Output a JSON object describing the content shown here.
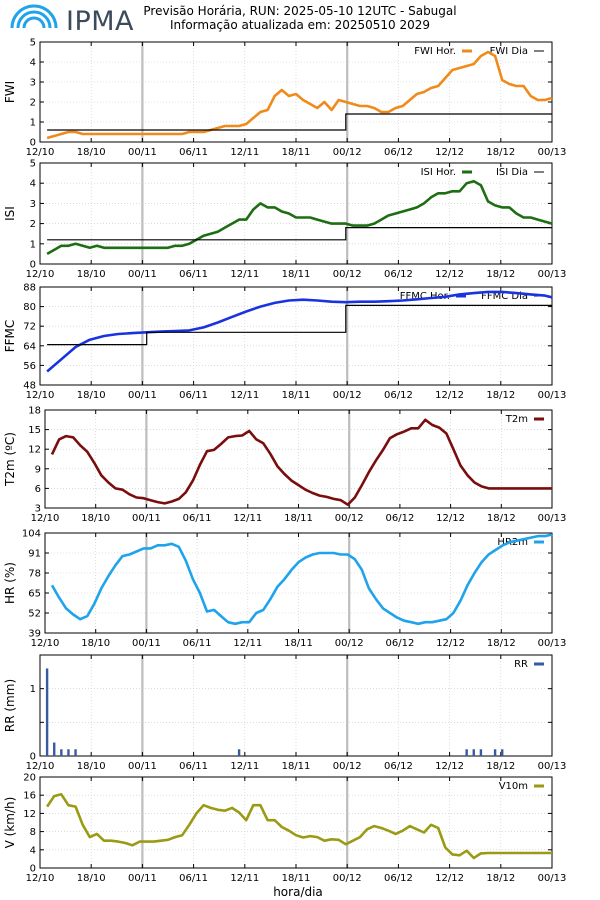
{
  "header": {
    "logo_text": "IPMA",
    "title_line1": "Previsão Horária, RUN: 2025-05-10 12UTC - Sabugal",
    "title_line2": "Informação atualizada em: 20250510 2029"
  },
  "x_axis": {
    "label": "hora/dia",
    "range_hours": [
      0,
      72
    ],
    "tick_labels": [
      "12/10",
      "18/10",
      "00/11",
      "06/11",
      "12/11",
      "18/11",
      "00/12",
      "06/12",
      "12/12",
      "18/12",
      "00/13"
    ],
    "day_separators": [
      "00/11",
      "00/12"
    ]
  },
  "colors": {
    "fwi": "#f08a1a",
    "isi": "#1d6e12",
    "ffmc": "#1a33e0",
    "t2m": "#7a0d0d",
    "hr": "#1ea3ec",
    "rr": "#3a5aa0",
    "v10": "#9b9a14",
    "daily": "#000000"
  },
  "chart_data": [
    {
      "id": "fwi",
      "type": "line",
      "ylabel": "FWI",
      "ylim": [
        0,
        5
      ],
      "yticks": [
        "0",
        "1",
        "2",
        "3",
        "4",
        "5"
      ],
      "series": [
        {
          "name": "FWI Hor.",
          "x": [
            1,
            2,
            3,
            4,
            5,
            6,
            7,
            8,
            9,
            10,
            11,
            12,
            13,
            14,
            15,
            16,
            17,
            18,
            19,
            20,
            21,
            22,
            23,
            24,
            25,
            26,
            27,
            28,
            29,
            30,
            31,
            32,
            33,
            34,
            35,
            36,
            37,
            38,
            39,
            40,
            41,
            42,
            43,
            44,
            45,
            46,
            47,
            48,
            49,
            50,
            51,
            52,
            53,
            54,
            55,
            56,
            57,
            58,
            59,
            60,
            61,
            62,
            63,
            64,
            65,
            66,
            67,
            68,
            69,
            70,
            71,
            72
          ],
          "values": [
            0.2,
            0.3,
            0.4,
            0.5,
            0.5,
            0.4,
            0.4,
            0.4,
            0.4,
            0.4,
            0.4,
            0.4,
            0.4,
            0.4,
            0.4,
            0.4,
            0.4,
            0.4,
            0.4,
            0.4,
            0.5,
            0.5,
            0.5,
            0.6,
            0.7,
            0.8,
            0.8,
            0.8,
            0.9,
            1.2,
            1.5,
            1.6,
            2.3,
            2.6,
            2.3,
            2.4,
            2.1,
            1.9,
            1.7,
            2.0,
            1.6,
            2.1,
            2.0,
            1.9,
            1.8,
            1.8,
            1.7,
            1.5,
            1.5,
            1.7,
            1.8,
            2.1,
            2.4,
            2.5,
            2.7,
            2.8,
            3.2,
            3.6,
            3.7,
            3.8,
            3.9,
            4.3,
            4.5,
            4.3,
            3.1,
            2.9,
            2.8,
            2.8,
            2.3,
            2.1,
            2.1,
            2.2
          ]
        },
        {
          "name": "FWI Dia",
          "daily": true,
          "steps": [
            [
              1,
              0.6
            ],
            [
              43,
              0.6
            ],
            [
              43,
              1.4
            ],
            [
              72,
              1.4
            ]
          ]
        }
      ]
    },
    {
      "id": "isi",
      "type": "line",
      "ylabel": "ISI",
      "ylim": [
        0,
        5
      ],
      "yticks": [
        "0",
        "1",
        "2",
        "3",
        "4",
        "5"
      ],
      "series": [
        {
          "name": "ISI Hor.",
          "x": [
            1,
            2,
            3,
            4,
            5,
            6,
            7,
            8,
            9,
            10,
            11,
            12,
            13,
            14,
            15,
            16,
            17,
            18,
            19,
            20,
            21,
            22,
            23,
            24,
            25,
            26,
            27,
            28,
            29,
            30,
            31,
            32,
            33,
            34,
            35,
            36,
            37,
            38,
            39,
            40,
            41,
            42,
            43,
            44,
            45,
            46,
            47,
            48,
            49,
            50,
            51,
            52,
            53,
            54,
            55,
            56,
            57,
            58,
            59,
            60,
            61,
            62,
            63,
            64,
            65,
            66,
            67,
            68,
            69,
            70,
            71,
            72
          ],
          "values": [
            0.5,
            0.7,
            0.9,
            0.9,
            1.0,
            0.9,
            0.8,
            0.9,
            0.8,
            0.8,
            0.8,
            0.8,
            0.8,
            0.8,
            0.8,
            0.8,
            0.8,
            0.8,
            0.9,
            0.9,
            1.0,
            1.2,
            1.4,
            1.5,
            1.6,
            1.8,
            2.0,
            2.2,
            2.2,
            2.7,
            3.0,
            2.8,
            2.8,
            2.6,
            2.5,
            2.3,
            2.3,
            2.3,
            2.2,
            2.1,
            2.0,
            2.0,
            2.0,
            1.9,
            1.9,
            1.9,
            2.0,
            2.2,
            2.4,
            2.5,
            2.6,
            2.7,
            2.8,
            3.0,
            3.3,
            3.5,
            3.5,
            3.6,
            3.6,
            4.0,
            4.1,
            3.9,
            3.1,
            2.9,
            2.8,
            2.8,
            2.5,
            2.3,
            2.3,
            2.2,
            2.1,
            2.0
          ]
        },
        {
          "name": "ISI Dia",
          "daily": true,
          "steps": [
            [
              1,
              1.2
            ],
            [
              43,
              1.2
            ],
            [
              43,
              1.8
            ],
            [
              72,
              1.8
            ]
          ]
        }
      ]
    },
    {
      "id": "ffmc",
      "type": "line",
      "ylabel": "FFMC",
      "ylim": [
        48,
        88
      ],
      "yticks": [
        "48",
        "56",
        "64",
        "72",
        "80",
        "88"
      ],
      "series": [
        {
          "name": "FFMC Hor.",
          "x": [
            1,
            3,
            5,
            7,
            9,
            11,
            13,
            15,
            17,
            19,
            21,
            23,
            25,
            27,
            29,
            31,
            33,
            35,
            37,
            39,
            41,
            43,
            45,
            47,
            49,
            51,
            53,
            55,
            57,
            59,
            61,
            63,
            65,
            67,
            69,
            71,
            72
          ],
          "values": [
            53.5,
            58.5,
            63.5,
            66.5,
            68.0,
            68.8,
            69.2,
            69.5,
            69.8,
            70.0,
            70.3,
            71.5,
            73.5,
            75.8,
            78.0,
            80.0,
            81.5,
            82.5,
            82.8,
            82.5,
            82.0,
            81.8,
            82.0,
            82.0,
            82.2,
            82.5,
            83.0,
            83.5,
            84.0,
            85.0,
            85.5,
            86.0,
            86.0,
            85.5,
            85.0,
            84.5,
            83.8
          ]
        },
        {
          "name": "FFMC Dia",
          "daily": true,
          "steps": [
            [
              1,
              64.5
            ],
            [
              15,
              64.5
            ],
            [
              15,
              69.5
            ],
            [
              43,
              69.5
            ],
            [
              43,
              80.5
            ],
            [
              72,
              80.5
            ]
          ]
        }
      ]
    },
    {
      "id": "t2m",
      "type": "line",
      "ylabel": "T2m (ºC)",
      "ylim": [
        3,
        18
      ],
      "yticks": [
        "3",
        "6",
        "9",
        "12",
        "15",
        "18"
      ],
      "series": [
        {
          "name": "T2m",
          "x": [
            1,
            2,
            3,
            4,
            5,
            6,
            7,
            8,
            9,
            10,
            11,
            12,
            13,
            14,
            15,
            16,
            17,
            18,
            19,
            20,
            21,
            22,
            23,
            24,
            25,
            26,
            27,
            28,
            29,
            30,
            31,
            32,
            33,
            34,
            35,
            36,
            37,
            38,
            39,
            40,
            41,
            42,
            43,
            44,
            45,
            46,
            47,
            48,
            49,
            50,
            51,
            52,
            53,
            54,
            55,
            56,
            57,
            58,
            59,
            60,
            61,
            62,
            63,
            64,
            65,
            66,
            67,
            68,
            69,
            70,
            71,
            72
          ],
          "values": [
            11.2,
            13.5,
            14.0,
            13.8,
            12.6,
            11.6,
            9.9,
            8.0,
            6.9,
            6.0,
            5.8,
            5.1,
            4.6,
            4.5,
            4.2,
            3.9,
            3.7,
            4.0,
            4.4,
            5.4,
            7.2,
            9.6,
            11.7,
            11.9,
            12.8,
            13.8,
            14.0,
            14.1,
            14.8,
            13.5,
            12.9,
            11.3,
            9.4,
            8.2,
            7.2,
            6.5,
            5.8,
            5.3,
            4.9,
            4.7,
            4.4,
            4.2,
            3.5,
            4.6,
            6.5,
            8.5,
            10.3,
            11.9,
            13.7,
            14.3,
            14.7,
            15.2,
            15.2,
            16.5,
            15.7,
            15.3,
            14.4,
            12.0,
            9.5,
            8.0,
            6.9,
            6.3,
            6.0,
            6.0,
            6.0,
            6.0,
            6.0,
            6.0,
            6.0,
            6.0,
            6.0,
            6.0
          ]
        }
      ]
    },
    {
      "id": "hr",
      "type": "line",
      "ylabel": "HR (%)",
      "ylim": [
        39,
        104
      ],
      "yticks": [
        "39",
        "52",
        "65",
        "78",
        "91",
        "104"
      ],
      "series": [
        {
          "name": "HR2m",
          "x": [
            1,
            2,
            3,
            4,
            5,
            6,
            7,
            8,
            9,
            10,
            11,
            12,
            13,
            14,
            15,
            16,
            17,
            18,
            19,
            20,
            21,
            22,
            23,
            24,
            25,
            26,
            27,
            28,
            29,
            30,
            31,
            32,
            33,
            34,
            35,
            36,
            37,
            38,
            39,
            40,
            41,
            42,
            43,
            44,
            45,
            46,
            47,
            48,
            49,
            50,
            51,
            52,
            53,
            54,
            55,
            56,
            57,
            58,
            59,
            60,
            61,
            62,
            63,
            64,
            65,
            66,
            67,
            68,
            69,
            70,
            71,
            72
          ],
          "values": [
            70,
            62,
            55,
            51,
            48,
            50,
            58,
            68,
            76,
            83,
            89,
            90,
            92,
            94,
            94,
            96,
            96,
            97,
            95,
            86,
            74,
            65,
            53,
            54,
            50,
            46,
            45,
            46,
            46,
            52,
            54,
            61,
            69,
            74,
            80,
            85,
            88,
            90,
            91,
            91,
            91,
            90,
            90,
            87,
            80,
            68,
            61,
            55,
            52,
            49,
            47,
            46,
            45,
            46,
            46,
            47,
            48,
            52,
            60,
            70,
            78,
            85,
            90,
            93,
            96,
            98,
            99,
            100,
            101,
            102,
            102,
            103
          ]
        }
      ]
    },
    {
      "id": "rr",
      "type": "bar",
      "ylabel": "RR (mm)",
      "ylim": [
        0,
        1.5
      ],
      "yticks": [
        "0",
        "",
        "1",
        ""
      ],
      "series": [
        {
          "name": "RR",
          "x": [
            1,
            2,
            3,
            4,
            5,
            28,
            60,
            61,
            62,
            64,
            65
          ],
          "values": [
            1.3,
            0.2,
            0.1,
            0.1,
            0.1,
            0.1,
            0.1,
            0.1,
            0.1,
            0.1,
            0.1
          ]
        }
      ]
    },
    {
      "id": "v10",
      "type": "line",
      "ylabel": "V (km/h)",
      "ylim": [
        0,
        20
      ],
      "yticks": [
        "0",
        "4",
        "8",
        "12",
        "16",
        "20"
      ],
      "series": [
        {
          "name": "V10m",
          "x": [
            1,
            2,
            3,
            4,
            5,
            6,
            7,
            8,
            9,
            10,
            11,
            12,
            13,
            14,
            15,
            16,
            17,
            18,
            19,
            20,
            21,
            22,
            23,
            24,
            25,
            26,
            27,
            28,
            29,
            30,
            31,
            32,
            33,
            34,
            35,
            36,
            37,
            38,
            39,
            40,
            41,
            42,
            43,
            44,
            45,
            46,
            47,
            48,
            49,
            50,
            51,
            52,
            53,
            54,
            55,
            56,
            57,
            58,
            59,
            60,
            61,
            62,
            63,
            64,
            65,
            66,
            67,
            68,
            69,
            70,
            71,
            72
          ],
          "values": [
            13.5,
            15.8,
            16.2,
            13.8,
            13.5,
            9.5,
            6.8,
            7.5,
            6.0,
            6.0,
            5.8,
            5.5,
            5.0,
            5.8,
            5.8,
            5.8,
            6.0,
            6.2,
            6.8,
            7.2,
            9.5,
            12.0,
            13.8,
            13.2,
            12.8,
            12.6,
            13.2,
            12.2,
            10.5,
            13.8,
            13.8,
            10.5,
            10.5,
            9.0,
            8.2,
            7.2,
            6.7,
            7.0,
            6.8,
            6.0,
            6.3,
            6.2,
            5.2,
            6.0,
            6.8,
            8.5,
            9.2,
            8.8,
            8.2,
            7.5,
            8.2,
            9.2,
            8.5,
            7.8,
            9.5,
            8.8,
            4.5,
            3.0,
            2.8,
            3.8,
            2.2,
            3.2,
            3.3,
            3.3,
            3.3,
            3.3,
            3.3,
            3.3,
            3.3,
            3.3,
            3.3,
            3.3
          ]
        }
      ]
    }
  ]
}
